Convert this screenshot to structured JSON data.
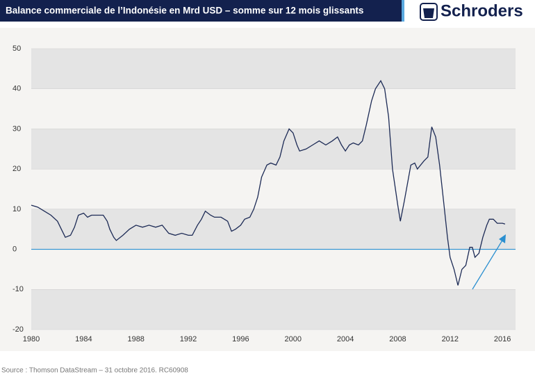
{
  "brand": "Schroders",
  "source": "Source : Thomson DataStream –  31 octobre 2016. RC60908",
  "chart_data": {
    "type": "line",
    "title": "Balance commerciale de l’Indonésie en Mrd USD – somme sur 12 mois glissants",
    "x": [
      1980.0,
      1980.5,
      1981.0,
      1981.5,
      1982.0,
      1982.3,
      1982.6,
      1983.0,
      1983.3,
      1983.6,
      1984.0,
      1984.3,
      1984.6,
      1985.0,
      1985.5,
      1985.8,
      1986.0,
      1986.3,
      1986.5,
      1987.0,
      1987.5,
      1988.0,
      1988.5,
      1989.0,
      1989.5,
      1990.0,
      1990.5,
      1991.0,
      1991.5,
      1992.0,
      1992.3,
      1992.7,
      1993.0,
      1993.3,
      1993.7,
      1994.0,
      1994.5,
      1995.0,
      1995.3,
      1995.6,
      1996.0,
      1996.3,
      1996.7,
      1997.0,
      1997.3,
      1997.6,
      1998.0,
      1998.3,
      1998.7,
      1999.0,
      1999.3,
      1999.7,
      2000.0,
      2000.3,
      2000.5,
      2001.0,
      2001.5,
      2002.0,
      2002.5,
      2003.0,
      2003.4,
      2003.7,
      2004.0,
      2004.3,
      2004.6,
      2005.0,
      2005.3,
      2005.6,
      2006.0,
      2006.3,
      2006.7,
      2007.0,
      2007.3,
      2007.6,
      2008.0,
      2008.2,
      2008.5,
      2009.0,
      2009.3,
      2009.5,
      2010.0,
      2010.3,
      2010.6,
      2010.9,
      2011.2,
      2011.5,
      2011.8,
      2012.0,
      2012.3,
      2012.6,
      2012.9,
      2013.2,
      2013.5,
      2013.7,
      2013.9,
      2014.2,
      2014.5,
      2014.8,
      2015.0,
      2015.3,
      2015.6,
      2016.0,
      2016.2
    ],
    "series": [
      {
        "color": "#1c2a55",
        "values": [
          11,
          10.5,
          9.5,
          8.5,
          7,
          5,
          3,
          3.5,
          5.5,
          8.5,
          9,
          8,
          8.5,
          8.5,
          8.5,
          7,
          5,
          3,
          2.2,
          3.5,
          5,
          6,
          5.5,
          6,
          5.5,
          6,
          4,
          3.5,
          4,
          3.5,
          3.5,
          6,
          7.5,
          9.5,
          8.5,
          8,
          8,
          7,
          4.5,
          5,
          6,
          7.5,
          8,
          10,
          13,
          18,
          21,
          21.5,
          21,
          23,
          27,
          30,
          29,
          26,
          24.5,
          25,
          26,
          27,
          26,
          27,
          28,
          26,
          24.5,
          26,
          26.5,
          26,
          27,
          31,
          37,
          40,
          42,
          40,
          33,
          20,
          11,
          7,
          12,
          21,
          21.5,
          20,
          22,
          23,
          30.5,
          28,
          21,
          12,
          3,
          -2,
          -5,
          -9,
          -5,
          -4,
          0.5,
          0.5,
          -2,
          -1,
          3,
          6,
          7.5,
          7.5,
          6.5,
          6.5,
          6.3
        ]
      }
    ],
    "xlim": [
      1980,
      2017
    ],
    "xticks": [
      1980,
      1984,
      1988,
      1992,
      1996,
      2000,
      2004,
      2008,
      2012,
      2016
    ],
    "ylim": [
      -20,
      50
    ],
    "yticks": [
      -20,
      -10,
      0,
      10,
      20,
      30,
      40,
      50
    ],
    "zero_line_color": "#2a8fd0",
    "grid": true
  }
}
